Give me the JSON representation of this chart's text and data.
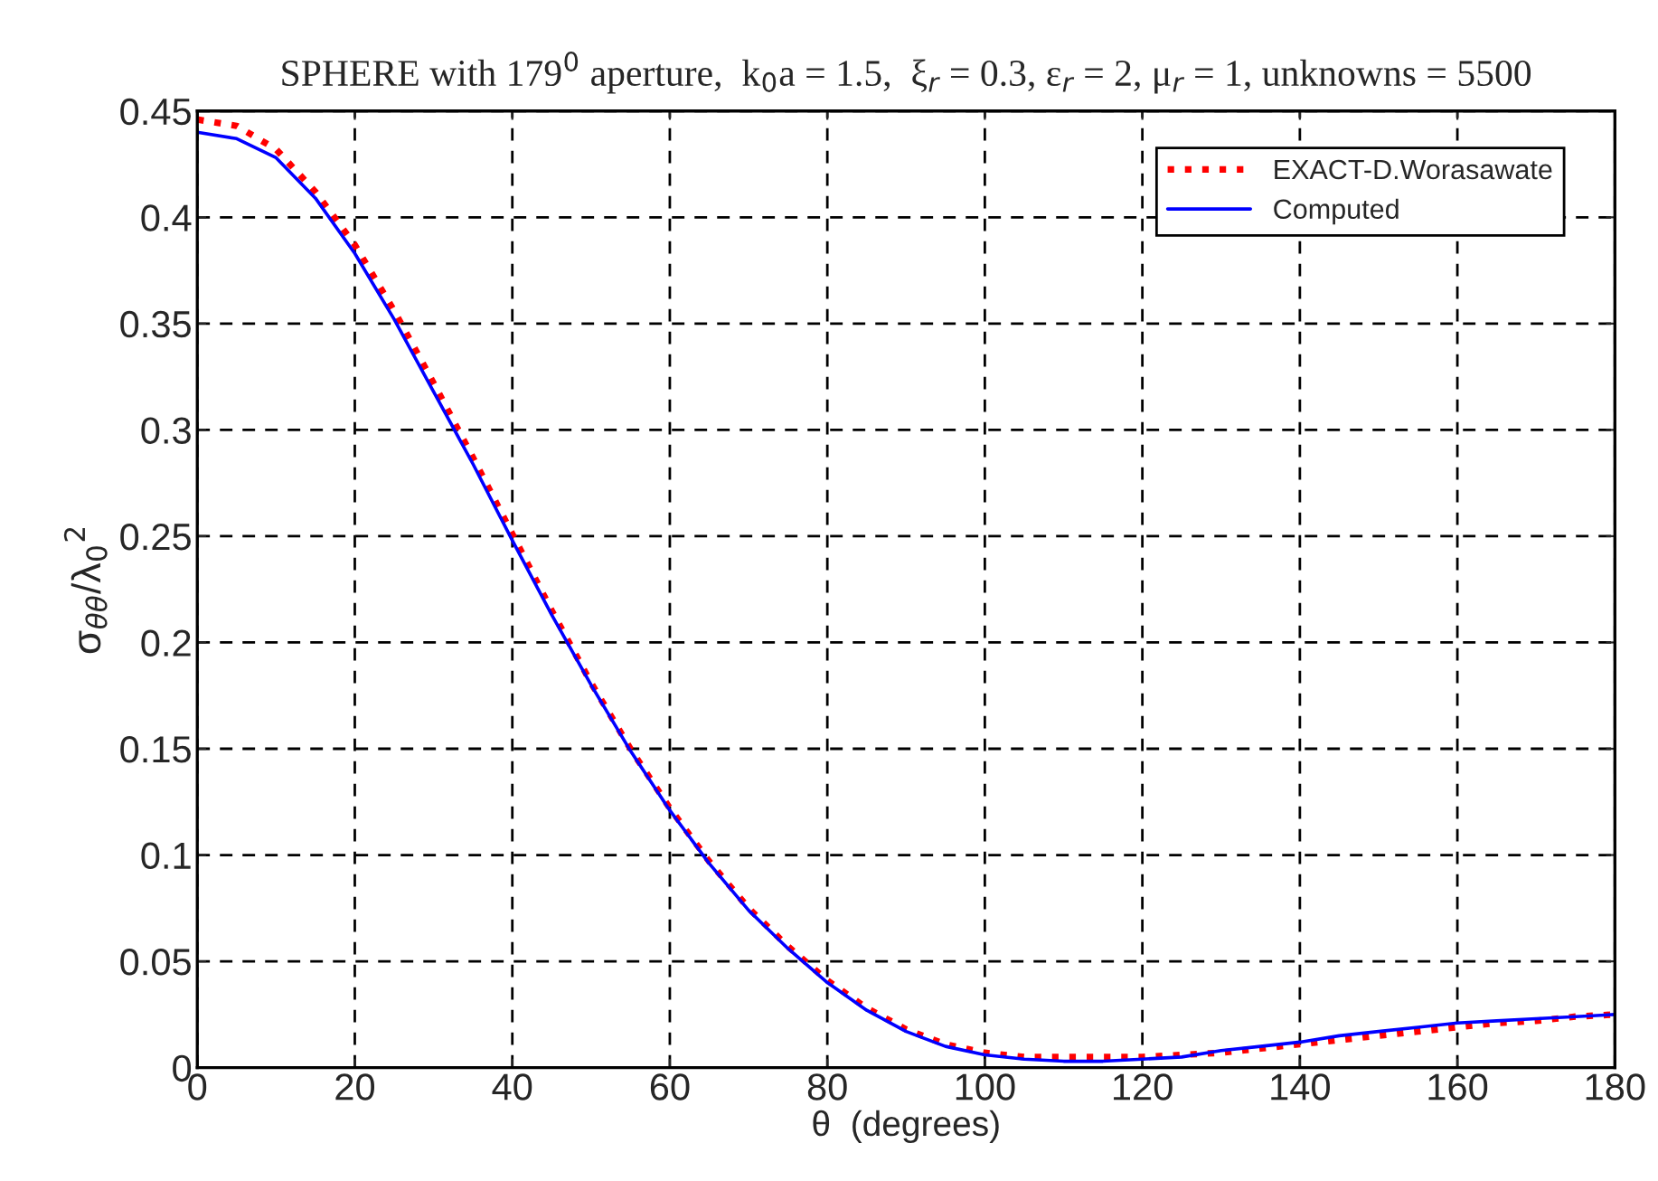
{
  "chart_data": {
    "type": "line",
    "title": "SPHERE with 179$^{0}$ aperture,  k$_{0}$a = 1.5,  ξ$_{r}$ = 0.3, ε$_{r}$ = 2, μ$_{r}$ = 1, unknowns = 5500",
    "xlabel": "θ  (degrees)",
    "ylabel": "σ$_{θθ}$/λ$_{0}$$^{2}$",
    "x": [
      0,
      5,
      10,
      15,
      20,
      25,
      30,
      35,
      40,
      45,
      50,
      55,
      60,
      65,
      70,
      75,
      80,
      85,
      90,
      95,
      100,
      105,
      110,
      115,
      120,
      125,
      130,
      135,
      140,
      145,
      150,
      155,
      160,
      165,
      170,
      175,
      180
    ],
    "series": [
      {
        "name": "EXACT-D.Worasawate",
        "color": "#ff0000",
        "line_style": "dotted",
        "values": [
          0.446,
          0.443,
          0.432,
          0.412,
          0.387,
          0.356,
          0.322,
          0.287,
          0.251,
          0.215,
          0.181,
          0.15,
          0.122,
          0.097,
          0.075,
          0.057,
          0.041,
          0.028,
          0.018,
          0.011,
          0.007,
          0.005,
          0.005,
          0.005,
          0.005,
          0.006,
          0.007,
          0.009,
          0.011,
          0.013,
          0.015,
          0.017,
          0.019,
          0.021,
          0.022,
          0.024,
          0.025
        ]
      },
      {
        "name": "Computed",
        "color": "#0000ff",
        "line_style": "solid",
        "values": [
          0.44,
          0.437,
          0.428,
          0.409,
          0.383,
          0.352,
          0.318,
          0.284,
          0.248,
          0.213,
          0.18,
          0.149,
          0.121,
          0.096,
          0.074,
          0.056,
          0.04,
          0.027,
          0.017,
          0.01,
          0.006,
          0.004,
          0.003,
          0.003,
          0.004,
          0.005,
          0.008,
          0.01,
          0.012,
          0.015,
          0.017,
          0.019,
          0.021,
          0.022,
          0.023,
          0.024,
          0.025
        ]
      }
    ],
    "xlim": [
      0,
      180
    ],
    "xticks": [
      0,
      20,
      40,
      60,
      80,
      100,
      120,
      140,
      160,
      180
    ],
    "ylim": [
      0,
      0.45
    ],
    "yticks": [
      0,
      0.05,
      0.1,
      0.15,
      0.2,
      0.25,
      0.3,
      0.35,
      0.4,
      0.45
    ],
    "grid": true,
    "legend": "top right",
    "marker": "none"
  }
}
